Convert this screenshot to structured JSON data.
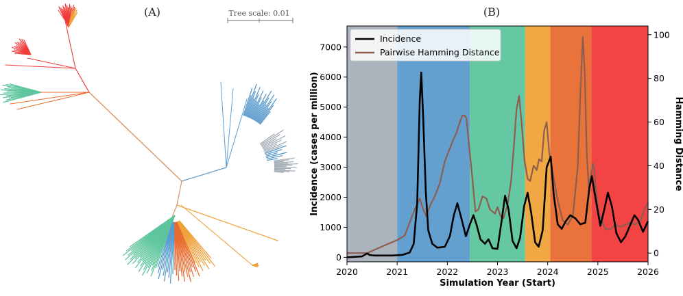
{
  "panels": {
    "tree": {
      "label": "(A)",
      "scale_label": "Tree scale: 0.01",
      "clade_colors": {
        "gray": "#a6afb9",
        "blue": "#5b9bcd",
        "green": "#5ec59e",
        "orange": "#efa23a",
        "darkorange": "#e86b2f",
        "red": "#f13a3a",
        "root": "#d9956a"
      }
    },
    "incidence": {
      "label": "(B)"
    }
  },
  "chart_data": {
    "type": "line",
    "xlabel": "Simulation Year (Start)",
    "ylabel": "Incidence (cases per million)",
    "ylabel_right": "Hamming Distance",
    "xlim": [
      2020,
      2026
    ],
    "ylim": [
      -150,
      7700
    ],
    "ylim_right": [
      -4,
      104
    ],
    "xticks": [
      "2020",
      "2021",
      "2022",
      "2023",
      "2024",
      "2025",
      "2026"
    ],
    "yticks": [
      "0",
      "1000",
      "2000",
      "3000",
      "4000",
      "5000",
      "6000",
      "7000"
    ],
    "yticks_right": [
      "0",
      "20",
      "40",
      "60",
      "80",
      "100"
    ],
    "legend_position": "upper-left",
    "background_bands": [
      {
        "start": 2020.0,
        "end": 2021.0,
        "color": "#a6afb9"
      },
      {
        "start": 2021.0,
        "end": 2022.45,
        "color": "#5b9bcd"
      },
      {
        "start": 2022.45,
        "end": 2023.55,
        "color": "#5ec59e"
      },
      {
        "start": 2023.55,
        "end": 2024.05,
        "color": "#efa23a"
      },
      {
        "start": 2024.05,
        "end": 2024.87,
        "color": "#e86b2f"
      },
      {
        "start": 2024.87,
        "end": 2026.0,
        "color": "#f13a3a"
      }
    ],
    "series": [
      {
        "name": "Incidence",
        "color": "#000000",
        "axis": "left",
        "x": [
          2020.0,
          2020.3,
          2020.4,
          2020.45,
          2020.55,
          2020.7,
          2020.9,
          2021.1,
          2021.25,
          2021.33,
          2021.4,
          2021.45,
          2021.48,
          2021.52,
          2021.57,
          2021.62,
          2021.7,
          2021.8,
          2021.95,
          2022.05,
          2022.13,
          2022.2,
          2022.28,
          2022.37,
          2022.45,
          2022.52,
          2022.58,
          2022.66,
          2022.75,
          2022.82,
          2022.9,
          2023.0,
          2023.08,
          2023.15,
          2023.22,
          2023.3,
          2023.38,
          2023.45,
          2023.53,
          2023.6,
          2023.67,
          2023.75,
          2023.82,
          2023.9,
          2023.98,
          2024.06,
          2024.12,
          2024.2,
          2024.28,
          2024.36,
          2024.45,
          2024.55,
          2024.65,
          2024.75,
          2024.83,
          2024.88,
          2024.95,
          2025.05,
          2025.13,
          2025.2,
          2025.28,
          2025.37,
          2025.46,
          2025.55,
          2025.65,
          2025.73,
          2025.8,
          2025.9,
          2026.0
        ],
        "y": [
          0,
          30,
          130,
          80,
          60,
          60,
          60,
          80,
          160,
          450,
          1800,
          5200,
          6150,
          4600,
          2200,
          900,
          450,
          320,
          350,
          700,
          1400,
          1800,
          1300,
          700,
          1100,
          1400,
          1100,
          600,
          450,
          600,
          300,
          280,
          1200,
          2050,
          1600,
          550,
          300,
          650,
          1700,
          2150,
          1500,
          500,
          350,
          900,
          3000,
          3350,
          2100,
          1100,
          950,
          1200,
          1400,
          1300,
          1100,
          1150,
          2300,
          2700,
          2000,
          1050,
          1600,
          2150,
          1700,
          800,
          500,
          700,
          1100,
          1400,
          1250,
          850,
          1200
        ]
      },
      {
        "name": "Pairwise Hamming Distance",
        "color": "#8e5d4f",
        "axis": "right",
        "x": [
          2020.0,
          2020.2,
          2020.4,
          2020.6,
          2020.8,
          2021.0,
          2021.15,
          2021.25,
          2021.35,
          2021.45,
          2021.52,
          2021.58,
          2021.66,
          2021.75,
          2021.85,
          2021.95,
          2022.05,
          2022.12,
          2022.18,
          2022.25,
          2022.3,
          2022.34,
          2022.38,
          2022.43,
          2022.5,
          2022.56,
          2022.62,
          2022.7,
          2022.78,
          2022.85,
          2022.95,
          2023.0,
          2023.06,
          2023.12,
          2023.2,
          2023.27,
          2023.33,
          2023.38,
          2023.43,
          2023.48,
          2023.54,
          2023.6,
          2023.65,
          2023.72,
          2023.78,
          2023.83,
          2023.88,
          2023.93,
          2023.98,
          2024.03,
          2024.1,
          2024.2,
          2024.3,
          2024.4,
          2024.5,
          2024.55,
          2024.6,
          2024.65,
          2024.7,
          2024.74,
          2024.78,
          2024.82,
          2024.85,
          2024.9,
          2024.93,
          2024.97,
          2025.02,
          2025.08,
          2025.15,
          2025.25,
          2025.35,
          2025.45,
          2025.55,
          2025.65,
          2025.75,
          2025.85,
          2025.95,
          2026.0
        ],
        "y": [
          0,
          0,
          0,
          2,
          4,
          6,
          8,
          14,
          20,
          25,
          20,
          17,
          22,
          26,
          32,
          42,
          48,
          52,
          55,
          60,
          63,
          63,
          62,
          50,
          34,
          19,
          20,
          26,
          25,
          20,
          18,
          21,
          17,
          16,
          22,
          33,
          50,
          66,
          72,
          60,
          42,
          34,
          33,
          40,
          38,
          43,
          42,
          56,
          60,
          46,
          37,
          24,
          15,
          13,
          17,
          28,
          40,
          72,
          99,
          82,
          45,
          30,
          34,
          41,
          38,
          27,
          18,
          15,
          11,
          11,
          13,
          12,
          13,
          14,
          13,
          15,
          21,
          23
        ]
      }
    ]
  }
}
